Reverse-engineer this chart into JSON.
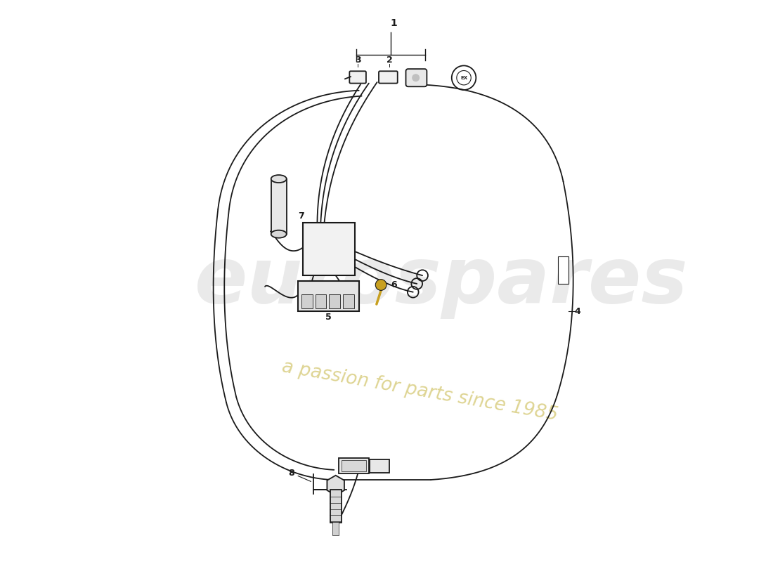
{
  "bg_color": "#ffffff",
  "line_color": "#1a1a1a",
  "watermark_text1": "eurospares",
  "watermark_text2": "a passion for parts since 1985"
}
